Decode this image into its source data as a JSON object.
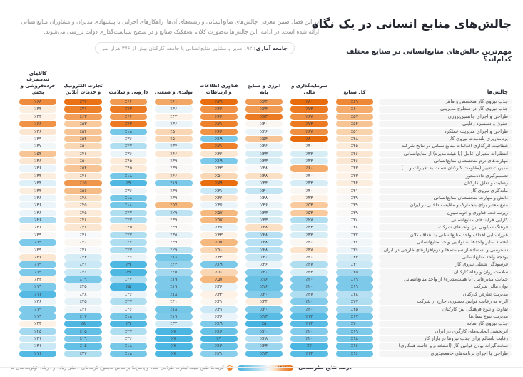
{
  "page": {
    "title": "چالش‌های منابع انسانی در یک نگاه",
    "intro": "در این فصل ضمن معرفی چالش‌های منابع‌انسانی و ریشه‌های آن‌ها، راهکارهای اجرایی با پیشنهادی مدیران و مشاوران منابع‌انسانی ارائه شده است. در ادامه، این چالش‌ها به‌صورت کلان، به‌تفکیک صنایع و در سطح سیاست‌گذاری دولت بررسی می‌شوند.",
    "stat_badge_label": "جامعه آماری:",
    "stat_badge_text": " ۱۹۲ مدیر و مشاور منابع‌انسانی با جامعه کارکنان بیش از ۳۷۶ هزار نفر",
    "subtitle": "مهم‌ترین چالش‌های منابع‌انسانی در صنایع مختلف کدام‌اند؟"
  },
  "chart_data": {
    "type": "heatmap",
    "unit": "percent",
    "value_prefix": "٪",
    "row_header": "چالش‌ها",
    "columns": [
      "کل صنایع",
      "سرمایه‌گذاری و مالی",
      "انرژی و صنایع پایه",
      "فناوری اطلاعات و ارتباطات",
      "تولیدی و صنعتی",
      "دارویی و سلامت",
      "تجارت الکترونیک و خدمات آنلاین",
      "کالاهای تندمصرف خرده‌فروشی و پخش"
    ],
    "color_scale": {
      "low_color": "#3aaede",
      "mid_color": "#ffffff",
      "high_color": "#e86c0c",
      "domain": [
        0,
        40,
        100
      ]
    },
    "rows": [
      {
        "label": "جذب نیروی کار متخصص و ماهر",
        "values": [
          69,
          80,
          64,
          79,
          61,
          64,
          77,
          68
        ]
      },
      {
        "label": "جذب نیروی کار در سطوح مدیریتی",
        "values": [
          60,
          73,
          64,
          66,
          36,
          73,
          71,
          44
        ]
      },
      {
        "label": "طراحی و اجرای جانشین‌پروری",
        "values": [
          57,
          67,
          73,
          66,
          43,
          64,
          63,
          43
        ]
      },
      {
        "label": "حقوق و دستمزد رقابتی",
        "values": [
          54,
          73,
          40,
          71,
          36,
          73,
          53,
          66
        ]
      },
      {
        "label": "طراحی و اجرای مدیریت عملکرد",
        "values": [
          51,
          67,
          36,
          66,
          50,
          18,
          54,
          46
        ]
      },
      {
        "label": "برنامه‌ریزی بلندمدت نیروی کار",
        "values": [
          48,
          80,
          54,
          19,
          50,
          36,
          54,
          39
        ]
      },
      {
        "label": "شفافیت اثرگذاری اقدامات منابع‌انسانی در نتایج شرکت",
        "values": [
          45,
          40,
          36,
          71,
          34,
          27,
          50,
          37
        ]
      },
      {
        "label": "انتظارات مدیران عامل (یا هیئت‌مدیره) از منابع‌انسانی",
        "values": [
          46,
          33,
          33,
          46,
          46,
          36,
          46,
          54
        ]
      },
      {
        "label": "مهارت‌های نرم متخصصان منابع‌انسانی",
        "values": [
          46,
          33,
          33,
          19,
          39,
          45,
          50,
          46
        ]
      },
      {
        "label": "مدیریت تغییر (مقاومت کارکنان نسبت به تغییرات و ...)",
        "values": [
          43,
          60,
          38,
          43,
          39,
          45,
          54,
          36
        ]
      },
      {
        "label": "تصمیم‌گیری داده‌محور",
        "values": [
          43,
          40,
          48,
          50,
          46,
          18,
          46,
          44
        ]
      },
      {
        "label": "رضایت و تعلق کارکنان",
        "values": [
          44,
          33,
          34,
          79,
          19,
          9,
          65,
          34
        ]
      },
      {
        "label": "ماندگاری نیروی کار",
        "values": [
          41,
          40,
          30,
          31,
          39,
          36,
          56,
          44
        ]
      },
      {
        "label": "دانش و مهارت متخصصان منابع‌انسانی",
        "values": [
          39,
          43,
          38,
          46,
          39,
          18,
          48,
          36
        ]
      },
      {
        "label": "منبع معتبر برای بنچمارک و مقایسه داخلی در ایران",
        "values": [
          39,
          53,
          36,
          36,
          57,
          18,
          45,
          36
        ]
      },
      {
        "label": "زیرساخت، فناوری و اتوماسیون",
        "values": [
          39,
          53,
          33,
          57,
          29,
          27,
          45,
          36
        ]
      },
      {
        "label": "کارایی فرایندهای منابع‌انسانی",
        "values": [
          38,
          27,
          33,
          57,
          39,
          27,
          48,
          26
        ]
      },
      {
        "label": "فرهنگ سیلویی بین واحدهای شرکت",
        "values": [
          38,
          33,
          48,
          36,
          39,
          45,
          46,
          41
        ]
      },
      {
        "label": "هم‌راستایی اهداف واحد منابع‌انسانی با اهداف کلان",
        "values": [
          37,
          33,
          28,
          43,
          35,
          27,
          38,
          39
        ]
      },
      {
        "label": "اعتماد سایر واحدها به توانایی واحد منابع‌انسانی",
        "values": [
          37,
          40,
          28,
          57,
          39,
          27,
          40,
          19
        ]
      },
      {
        "label": "دسترسی و استفاده از سیستم‌ها و نرم‌افزارهای خارجی در ایران",
        "values": [
          36,
          47,
          28,
          50,
          29,
          27,
          38,
          39
        ]
      },
      {
        "label": "بودجه واحد منابع‌انسانی",
        "values": [
          33,
          40,
          30,
          43,
          18,
          36,
          33,
          46
        ]
      },
      {
        "label": "فرسودگی شغلی نیروی کار",
        "values": [
          31,
          27,
          36,
          19,
          23,
          9,
          31,
          19
        ]
      },
      {
        "label": "سلامت روان و رفاه کارکنان",
        "values": [
          25,
          33,
          20,
          50,
          25,
          9,
          31,
          19
        ]
      },
      {
        "label": "حمایت مدیرعامل (یا هیئت‌مدیره) از واحد منابع‌انسانی",
        "values": [
          19,
          20,
          16,
          57,
          19,
          27,
          19,
          43
        ]
      },
      {
        "label": "توان مالی شرکت",
        "values": [
          19,
          20,
          16,
          36,
          19,
          5,
          35,
          19
        ]
      },
      {
        "label": "مدیریت تعارض کارکنان",
        "values": [
          28,
          27,
          20,
          43,
          18,
          36,
          38,
          11
        ]
      },
      {
        "label": "الزام به رعایت قوانین دستوری خارج از شرکت",
        "values": [
          27,
          20,
          44,
          41,
          41,
          27,
          35,
          36
        ]
      },
      {
        "label": "تفاوت و تنوع فرهنگی بین کارکنان",
        "values": [
          25,
          20,
          20,
          31,
          18,
          36,
          37,
          19
        ]
      },
      {
        "label": "مدیریت تنوع نسل‌ها",
        "values": [
          17,
          13,
          13,
          36,
          19,
          18,
          17,
          19
        ]
      },
      {
        "label": "جذب نیروی کار ساده",
        "values": [
          20,
          13,
          5,
          19,
          32,
          9,
          8,
          43
        ]
      },
      {
        "label": "اثربخشی اتحادیه‌های کارگری در ایران",
        "values": [
          19,
          20,
          20,
          16,
          7,
          27,
          15,
          25
        ]
      },
      {
        "label": "رقابت ناسالم برای جذب نیروها در بازار کار",
        "values": [
          18,
          20,
          28,
          7,
          7,
          36,
          19,
          31
        ]
      },
      {
        "label": "سخت‌گیرانه بودن قوانین کار (استخدام و خاتمه همکاری)",
        "values": [
          16,
          7,
          24,
          16,
          7,
          18,
          15,
          31
        ]
      },
      {
        "label": "طراحی یا اجرای برنامه‌های جامعه‌پذیری",
        "values": [
          16,
          13,
          13,
          21,
          7,
          18,
          27,
          11
        ]
      }
    ]
  },
  "footer": {
    "legend_label": "درصد نتایج نظرسنجی",
    "legend_max": "٪۱۰۰",
    "legend_min": "۰",
    "note_icon": "asterisk-icon",
    "note": "گزینه‌ها طبق طیف لیکرت طراحی شده و پاسخ‌ها براساس مجموع گزینه‌های «خیلی زیاد» و «زیاد» اولویت‌بندی شده‌اند."
  }
}
